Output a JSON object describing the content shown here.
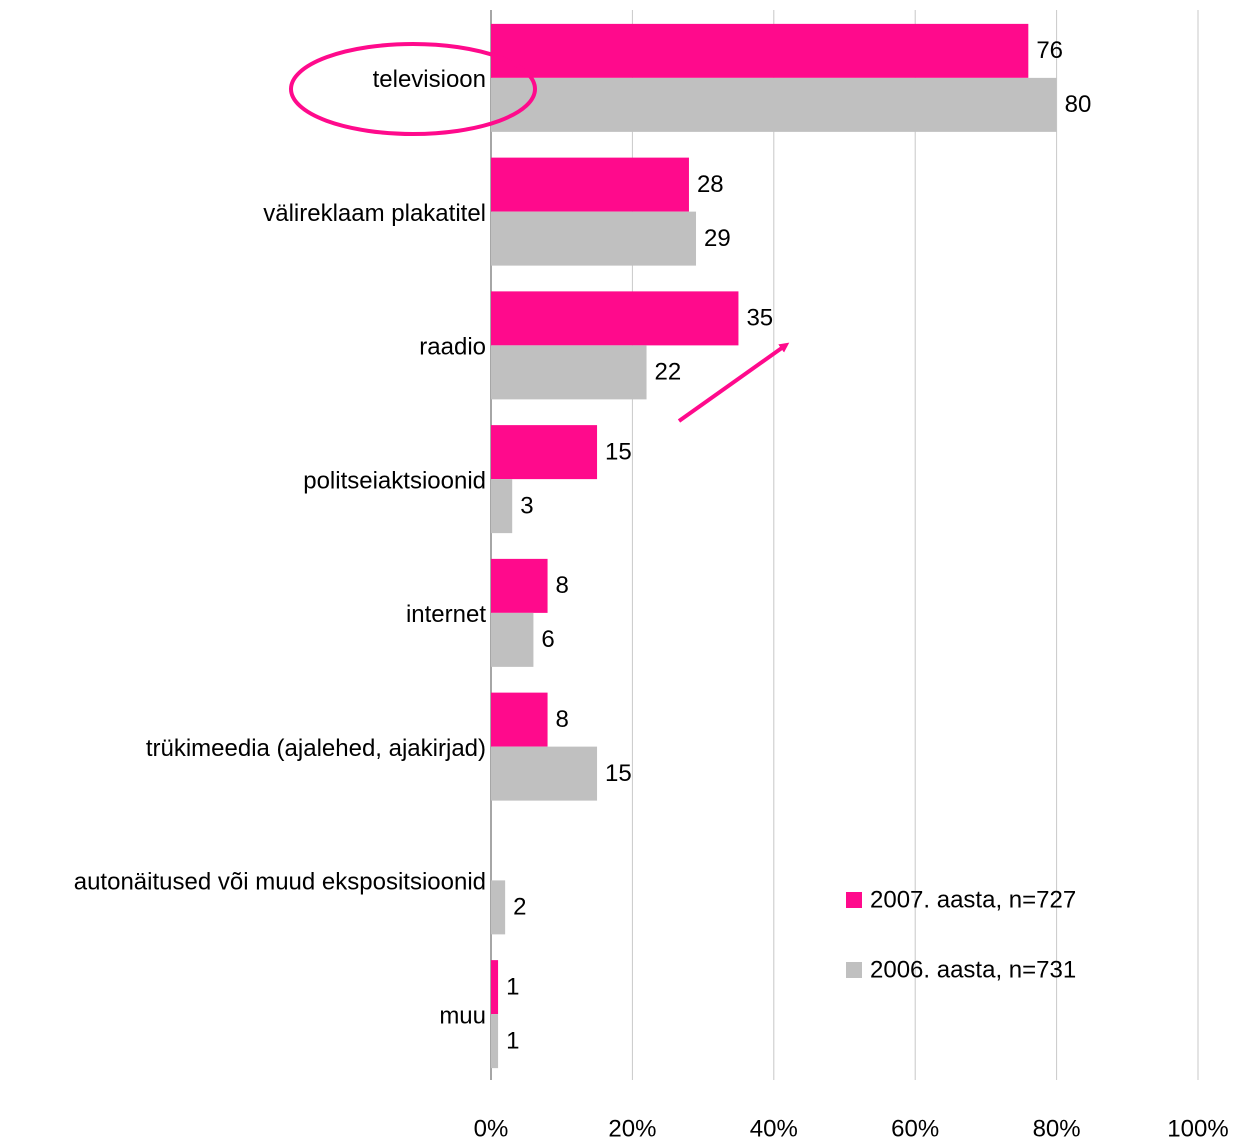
{
  "chart_data": {
    "type": "hbar",
    "categories": [
      "televisioon",
      "välireklaam plakatitel",
      "raadio",
      "politseiaktsioonid",
      "internet",
      "trükimeedia (ajalehed, ajakirjad)",
      "autonäitused või muud ekspositsioonid",
      "muu"
    ],
    "series": [
      {
        "name": "2007. aasta, n=727",
        "color": "#ff0a8c",
        "values": [
          76,
          28,
          35,
          15,
          8,
          8,
          null,
          1
        ]
      },
      {
        "name": "2006. aasta, n=731",
        "color": "#c0c0c0",
        "values": [
          80,
          29,
          22,
          3,
          6,
          15,
          2,
          1
        ]
      }
    ],
    "xlim": [
      0,
      100
    ],
    "xticks": [
      {
        "value": 0,
        "label": "0%"
      },
      {
        "value": 20,
        "label": "20%"
      },
      {
        "value": 40,
        "label": "40%"
      },
      {
        "value": 60,
        "label": "60%"
      },
      {
        "value": 80,
        "label": "80%"
      },
      {
        "value": 100,
        "label": "100%"
      }
    ],
    "grid": true,
    "legend": "lower right"
  }
}
